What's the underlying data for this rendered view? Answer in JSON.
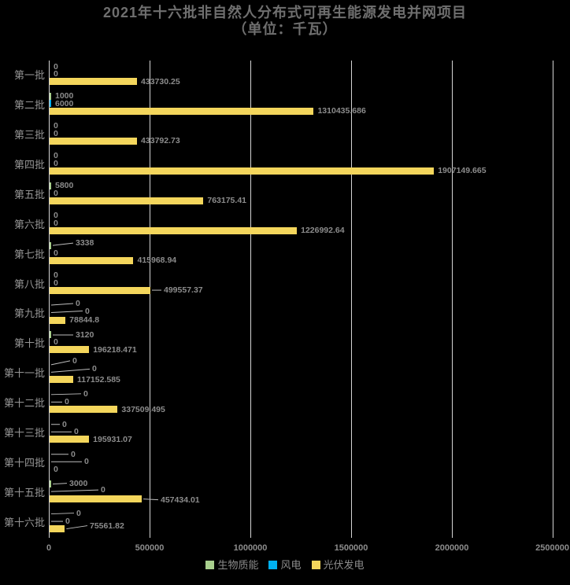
{
  "title": {
    "line1": "2021年十六批非自然人分布式可再生能源发电并网项目",
    "line2": "（单位：千瓦）"
  },
  "chart_data": {
    "type": "bar",
    "orientation": "horizontal",
    "title": "2021年十六批非自然人分布式可再生能源发电并网项目（单位：千瓦）",
    "unit": "千瓦",
    "grid": true,
    "legend_position": "bottom",
    "xlim": [
      0,
      2500000
    ],
    "x_tick_values": [
      0,
      500000,
      1000000,
      1500000,
      2000000,
      2500000
    ],
    "x_tick_labels": [
      "0",
      "500000",
      "1000000",
      "1500000",
      "2000000",
      "2500000"
    ],
    "series": [
      {
        "name": "生物质能",
        "color": "#a9d08e"
      },
      {
        "name": "风电",
        "color": "#00b0f0"
      },
      {
        "name": "光伏发电",
        "color": "#f4d65c"
      }
    ],
    "categories": [
      "第一批",
      "第二批",
      "第三批",
      "第四批",
      "第五批",
      "第六批",
      "第七批",
      "第八批",
      "第九批",
      "第十批",
      "第十一批",
      "第十二批",
      "第十三批",
      "第十四批",
      "第十五批",
      "第十六批"
    ],
    "rows": [
      {
        "category": "第一批",
        "bars": [
          {
            "value": 0,
            "label": "0"
          },
          {
            "value": 0,
            "label": "0"
          },
          {
            "value": 433730.25,
            "label": "433730.25"
          }
        ]
      },
      {
        "category": "第二批",
        "bars": [
          {
            "value": 1000,
            "label": "1000"
          },
          {
            "value": 6000,
            "label": "6000"
          },
          {
            "value": 1310435.686,
            "label": "1310435.686"
          }
        ]
      },
      {
        "category": "第三批",
        "bars": [
          {
            "value": 0,
            "label": "0"
          },
          {
            "value": 0,
            "label": "0"
          },
          {
            "value": 433792.73,
            "label": "433792.73"
          }
        ]
      },
      {
        "category": "第四批",
        "bars": [
          {
            "value": 0,
            "label": "0"
          },
          {
            "value": 0,
            "label": "0"
          },
          {
            "value": 1907149.665,
            "label": "1907149.665"
          }
        ]
      },
      {
        "category": "第五批",
        "bars": [
          {
            "value": 5800,
            "label": "5800"
          },
          {
            "value": 0,
            "label": "0"
          },
          {
            "value": 763175.41,
            "label": "763175.41"
          }
        ]
      },
      {
        "category": "第六批",
        "bars": [
          {
            "value": 0,
            "label": "0"
          },
          {
            "value": 0,
            "label": "0"
          },
          {
            "value": 1226992.64,
            "label": "1226992.64"
          }
        ]
      },
      {
        "category": "第七批",
        "bars": [
          {
            "value": 3338,
            "label": "3338",
            "leader": true,
            "lx": 96,
            "dy": -3
          },
          {
            "value": 0,
            "label": "0"
          },
          {
            "value": 415968.94,
            "label": "415968.94"
          }
        ]
      },
      {
        "category": "第八批",
        "bars": [
          {
            "value": 0,
            "label": "0"
          },
          {
            "value": 0,
            "label": "0"
          },
          {
            "value": 499557.37,
            "label": "499557.37",
            "leader": true,
            "lx": 208,
            "dy": 0
          }
        ]
      },
      {
        "category": "第九批",
        "bars": [
          {
            "value": 0,
            "label": "0",
            "leader": true,
            "lx": 96,
            "dy": -2
          },
          {
            "value": 0,
            "label": "0",
            "leader": true,
            "lx": 108,
            "dy": -2
          },
          {
            "value": 78844.8,
            "label": "78844.8"
          }
        ]
      },
      {
        "category": "第十批",
        "bars": [
          {
            "value": 3120,
            "label": "3120",
            "leader": true,
            "lx": 96,
            "dy": 0
          },
          {
            "value": 0,
            "label": "0"
          },
          {
            "value": 196218.471,
            "label": "196218.471"
          }
        ]
      },
      {
        "category": "第十一批",
        "bars": [
          {
            "value": 0,
            "label": "0",
            "leader": true,
            "lx": 92,
            "dy": -5
          },
          {
            "value": 0,
            "label": "0",
            "leader": true,
            "lx": 117,
            "dy": -4
          },
          {
            "value": 117152.585,
            "label": "117152.585"
          }
        ]
      },
      {
        "category": "第十二批",
        "bars": [
          {
            "value": 0,
            "label": "0",
            "leader": true,
            "lx": 106,
            "dy": -1
          },
          {
            "value": 0,
            "label": "0",
            "leader": true,
            "lx": 82,
            "dy": 0
          },
          {
            "value": 337509.495,
            "label": "337509.495"
          }
        ]
      },
      {
        "category": "第十三批",
        "bars": [
          {
            "value": 0,
            "label": "0",
            "leader": true,
            "lx": 79,
            "dy": 0
          },
          {
            "value": 0,
            "label": "0",
            "leader": true,
            "lx": 94,
            "dy": 0
          },
          {
            "value": 195931.07,
            "label": "195931.07"
          }
        ]
      },
      {
        "category": "第十四批",
        "bars": [
          {
            "value": 0,
            "label": "0",
            "leader": true,
            "lx": 90,
            "dy": 0
          },
          {
            "value": 0,
            "label": "0",
            "leader": true,
            "lx": 107,
            "dy": 0
          },
          {
            "value": 0,
            "label": "0"
          }
        ]
      },
      {
        "category": "第十五批",
        "bars": [
          {
            "value": 3000,
            "label": "3000",
            "leader": true,
            "lx": 88,
            "dy": -1
          },
          {
            "value": 0,
            "label": "0",
            "leader": true,
            "lx": 128,
            "dy": -2
          },
          {
            "value": 457434.01,
            "label": "457434.01",
            "leader": true,
            "lx": 204,
            "dy": 1
          }
        ]
      },
      {
        "category": "第十六批",
        "bars": [
          {
            "value": 0,
            "label": "0",
            "leader": true,
            "lx": 97,
            "dy": -1
          },
          {
            "value": 0,
            "label": "0",
            "leader": true,
            "lx": 83,
            "dy": 0
          },
          {
            "value": 75561.82,
            "label": "75561.82",
            "leader": true,
            "lx": 114,
            "dy": -4
          }
        ]
      }
    ]
  }
}
